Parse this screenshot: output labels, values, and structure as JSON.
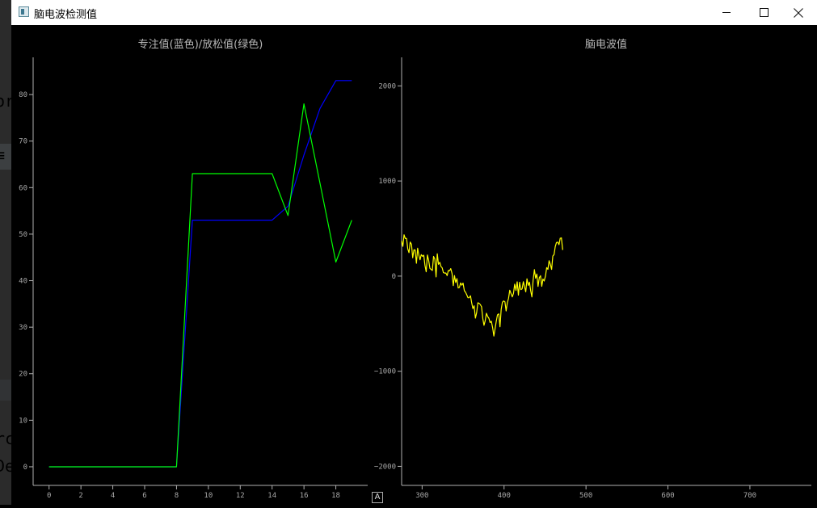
{
  "window": {
    "title": "脑电波检测值"
  },
  "background_fragments": [
    {
      "text": "or",
      "color": "#d3803a"
    },
    {
      "text": "≡",
      "color": "#9aa0a6"
    },
    {
      "text": "rc",
      "color": "#c8c8c8"
    },
    {
      "text": "De",
      "color": "#e06c6c"
    }
  ],
  "auto_button": {
    "label": "A"
  },
  "chart_data": [
    {
      "type": "line",
      "title": "专注值(蓝色)/放松值(绿色)",
      "xlim": [
        -1,
        20
      ],
      "ylim": [
        -4,
        88
      ],
      "x_ticks": [
        0,
        2,
        4,
        6,
        8,
        10,
        12,
        14,
        16,
        18
      ],
      "y_ticks": [
        0,
        10,
        20,
        30,
        40,
        50,
        60,
        70,
        80
      ],
      "x": [
        0,
        1,
        2,
        3,
        4,
        5,
        6,
        7,
        8,
        9,
        10,
        11,
        12,
        13,
        14,
        15,
        16,
        17,
        18,
        19
      ],
      "series": [
        {
          "color": "#0000ff",
          "values": [
            0,
            0,
            0,
            0,
            0,
            0,
            0,
            0,
            0,
            53,
            53,
            53,
            53,
            53,
            53,
            56,
            67,
            77,
            83,
            83
          ]
        },
        {
          "color": "#00ff00",
          "values": [
            0,
            0,
            0,
            0,
            0,
            0,
            0,
            0,
            0,
            63,
            63,
            63,
            63,
            63,
            63,
            54,
            78,
            61,
            44,
            53
          ]
        }
      ]
    },
    {
      "type": "line",
      "title": "脑电波值",
      "xlim": [
        275,
        775
      ],
      "ylim": [
        -2200,
        2300
      ],
      "x_ticks": [
        300,
        400,
        500,
        600,
        700
      ],
      "y_ticks": [
        -2000,
        -1000,
        0,
        1000,
        2000
      ],
      "series": [
        {
          "color": "#ffff00",
          "x_start": 275,
          "x_step": 1.5,
          "values": [
            372,
            313,
            435,
            395,
            396,
            286,
            247,
            358,
            334,
            193,
            276,
            275,
            135,
            293,
            220,
            171,
            226,
            208,
            220,
            111,
            46,
            222,
            162,
            81,
            70,
            59,
            207,
            179,
            -9,
            235,
            124,
            145,
            101,
            87,
            36,
            32,
            32,
            6,
            59,
            56,
            79,
            27,
            -100,
            6,
            -67,
            -26,
            -124,
            -119,
            -71,
            -95,
            -73,
            -153,
            -170,
            -196,
            -228,
            -227,
            -206,
            -281,
            -341,
            -312,
            -442,
            -386,
            -281,
            -285,
            -298,
            -322,
            -443,
            -517,
            -470,
            -390,
            -425,
            -443,
            -488,
            -474,
            -542,
            -630,
            -554,
            -475,
            -407,
            -397,
            -533,
            -349,
            -275,
            -261,
            -270,
            -366,
            -280,
            -234,
            -148,
            -184,
            -218,
            -182,
            -84,
            -150,
            -60,
            -200,
            -65,
            -142,
            -134,
            -59,
            -114,
            -165,
            -28,
            -98,
            -64,
            -154,
            -218,
            -44,
            69,
            -22,
            22,
            -109,
            -15,
            4,
            -107,
            -31,
            -52,
            2,
            89,
            71,
            162,
            124,
            70,
            211,
            226,
            311,
            353,
            357,
            330,
            397,
            402,
            275
          ]
        }
      ]
    }
  ]
}
